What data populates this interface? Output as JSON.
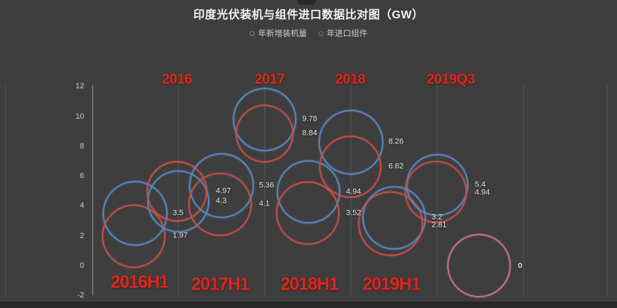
{
  "page": {
    "title": "印度光伏装机与组件进口数据比对图（GW）"
  },
  "legend": {
    "items": [
      {
        "label": "年新增装机量",
        "color": "#5b8ac6"
      },
      {
        "label": "年进口组件",
        "color": "#c9504c"
      }
    ]
  },
  "colors": {
    "background": "#3e3e3e",
    "bottom_band": "#272727",
    "installed": "#5b8ac6",
    "imported": "#c9504c",
    "zero_bubble": "#cf7390",
    "axis": "#9a9a9a",
    "gridline": "#575757",
    "tick_text": "#cfcfcf",
    "value_text": "#e6e6e6",
    "period_text": "#e1251b"
  },
  "chart_data": {
    "type": "scatter",
    "title": "印度光伏装机与组件进口数据比对图（GW）",
    "unit": "GW",
    "series": [
      {
        "name": "年新增装机量",
        "role": "installed"
      },
      {
        "name": "年进口组件",
        "role": "imported"
      }
    ],
    "ylim": [
      -2,
      12
    ],
    "y_ticks": [
      12,
      10,
      8,
      6,
      4,
      2,
      0,
      -2
    ],
    "grid": "vertical-only",
    "legend_position": "top",
    "groups": [
      {
        "period": "2016H1",
        "period_label_position": "bottom",
        "installed": 3.5,
        "imported": 1.97,
        "installed_label": "3.5",
        "imported_label": "1.97"
      },
      {
        "period": "2016",
        "period_label_position": "top",
        "installed": 4.3,
        "imported": 4.97,
        "installed_label": "4.3",
        "imported_label": "4.97"
      },
      {
        "period": "2017H1",
        "period_label_position": "bottom",
        "installed": 5.36,
        "imported": 4.1,
        "installed_label": "5.36",
        "imported_label": "4.1"
      },
      {
        "period": "2017",
        "period_label_position": "top",
        "installed": 9.78,
        "imported": 8.84,
        "installed_label": "9.78",
        "imported_label": "8.84"
      },
      {
        "period": "2018H1",
        "period_label_position": "bottom",
        "installed": 4.94,
        "imported": 3.52,
        "installed_label": "4.94",
        "imported_label": "3.52"
      },
      {
        "period": "2018",
        "period_label_position": "top",
        "installed": 8.26,
        "imported": 6.62,
        "installed_label": "8.26",
        "imported_label": "6.62"
      },
      {
        "period": "2019H1",
        "period_label_position": "bottom",
        "installed": 3.2,
        "imported": 2.81,
        "installed_label": "3.2",
        "imported_label": "2.81"
      },
      {
        "period": "2019Q3",
        "period_label_position": "top",
        "installed": 5.4,
        "imported": 4.94,
        "installed_label": "5.4",
        "imported_label": "4.94"
      },
      {
        "period": "",
        "period_label_position": "none",
        "installed": null,
        "imported": 0,
        "installed_label": "",
        "imported_label": "0",
        "bubble_color_role": "zero_bubble"
      }
    ]
  }
}
